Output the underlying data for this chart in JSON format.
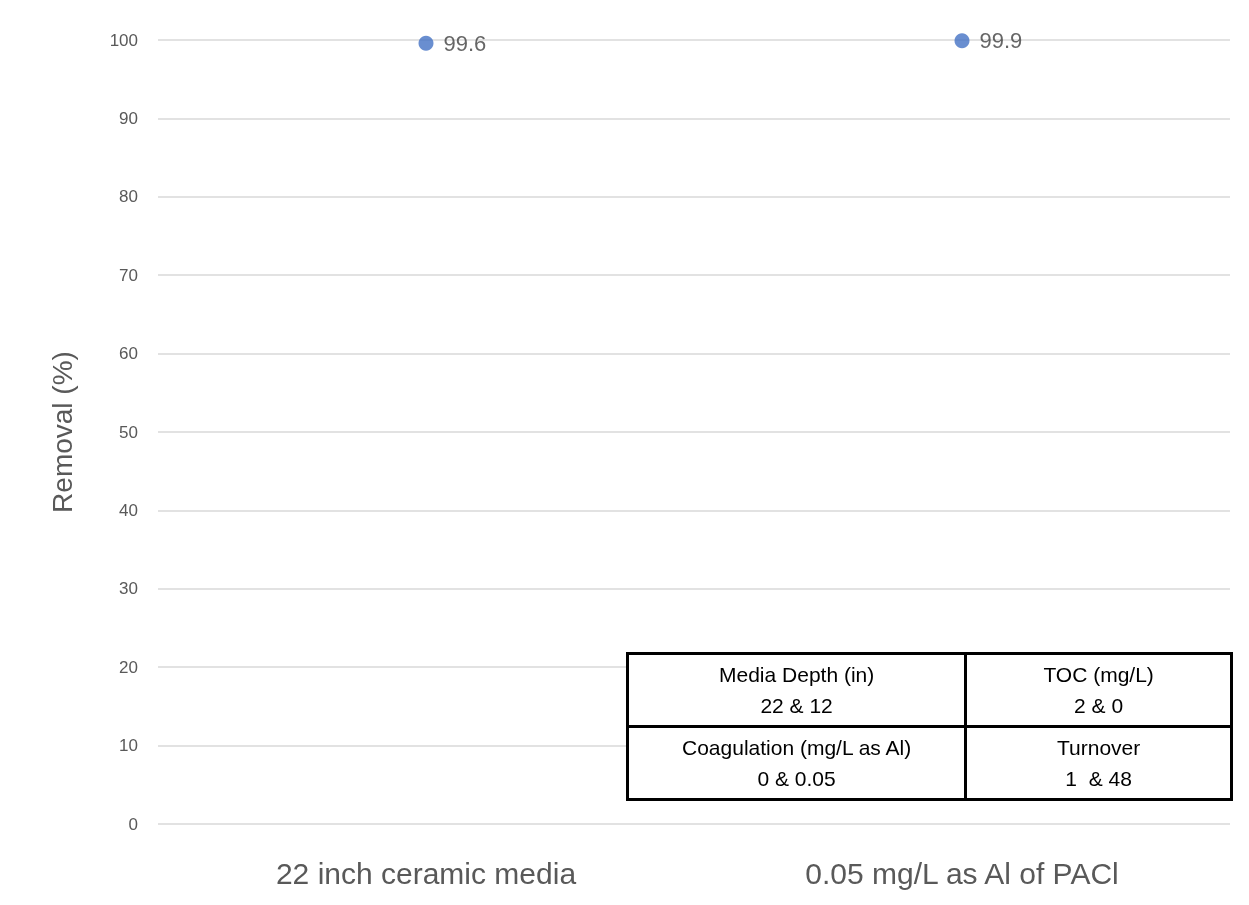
{
  "chart_data": {
    "type": "scatter",
    "ylabel": "Removal (%)",
    "categories": [
      "22 inch ceramic media",
      "0.05 mg/L as Al of PACl"
    ],
    "values": [
      99.6,
      99.9
    ],
    "color": "#4472c4",
    "marker": "circle",
    "data_labels": true,
    "ylim": [
      0,
      100
    ],
    "yticks": [
      0,
      10,
      20,
      30,
      40,
      50,
      60,
      70,
      80,
      90,
      100
    ],
    "grid": "y",
    "annotations": [
      "Media Depth (in)",
      "22 & 12",
      "TOC (mg/L)",
      "2 & 0",
      "Coagulation (mg/L as Al)",
      "0 & 0.05",
      "Turnover",
      "1  & 48"
    ]
  }
}
